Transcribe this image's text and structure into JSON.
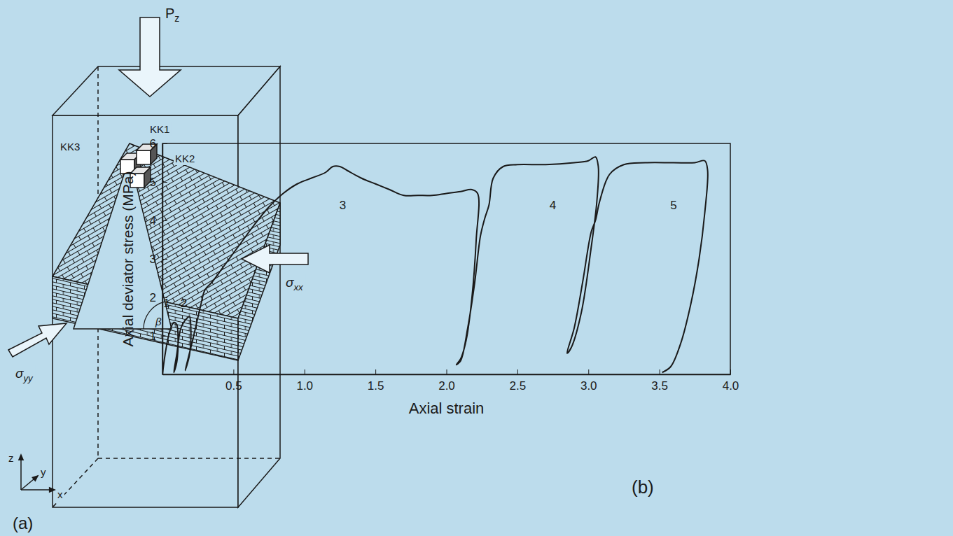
{
  "panels": [
    "(a)",
    "(b)"
  ],
  "diagram": {
    "labels": [
      {
        "text": "P",
        "sub": "z"
      },
      {
        "text": "KK3"
      },
      {
        "text": "KK1"
      },
      {
        "text": "KK2"
      },
      {
        "text": "β"
      },
      {
        "text": "σ",
        "sub": "xx"
      },
      {
        "text": "σ",
        "sub": "yy"
      },
      {
        "text": "z"
      },
      {
        "text": "y"
      },
      {
        "text": "x"
      }
    ]
  },
  "chart_data": {
    "type": "line",
    "x_label": "Axial strain",
    "y_label": "Axial deviator stress (MPa)",
    "xlim": [
      0,
      4
    ],
    "ylim": [
      0,
      6
    ],
    "xticks": [
      0.5,
      {
        "value": 1,
        "label": "1.0"
      },
      1.5,
      {
        "value": 2,
        "label": "2.0"
      },
      2.5,
      {
        "value": 3,
        "label": "3.0"
      },
      3.5,
      {
        "value": 4,
        "label": "4.0"
      }
    ],
    "yticks": [
      1,
      2,
      3,
      4,
      5,
      6
    ],
    "x": [
      0,
      0.02,
      0.05,
      0.08,
      0.1,
      0.11,
      0.1,
      0.08,
      0.1,
      0.13,
      0.17,
      0.19,
      0.2,
      0.19,
      0.16,
      0.18,
      0.22,
      0.27,
      0.3,
      0.35,
      0.45,
      0.55,
      0.65,
      0.75,
      0.85,
      0.95,
      1.05,
      1.15,
      1.2,
      1.25,
      1.3,
      1.4,
      1.5,
      1.6,
      1.7,
      1.8,
      1.9,
      2.0,
      2.1,
      2.18,
      2.22,
      2.21,
      2.18,
      2.14,
      2.1,
      2.07,
      2.1,
      2.15,
      2.2,
      2.24,
      2.27,
      2.3,
      2.33,
      2.4,
      2.5,
      2.7,
      2.9,
      3.0,
      3.05,
      3.07,
      3.06,
      3.02,
      2.95,
      2.88,
      2.85,
      2.9,
      2.96,
      3.02,
      3.05,
      3.08,
      3.15,
      3.25,
      3.4,
      3.6,
      3.75,
      3.82,
      3.84,
      3.82,
      3.78,
      3.72,
      3.65,
      3.58,
      3.52
    ],
    "series": [
      {
        "color": "#1a1a1a",
        "values": [
          0,
          0.55,
          1.1,
          1.35,
          1.3,
          0.8,
          0.3,
          0.05,
          0.5,
          1.2,
          1.45,
          1.5,
          1.2,
          0.5,
          0.1,
          0.4,
          1.0,
          1.8,
          2.2,
          2.4,
          2.9,
          3.4,
          3.9,
          4.35,
          4.7,
          4.95,
          5.1,
          5.25,
          5.4,
          5.4,
          5.3,
          5.1,
          4.95,
          4.8,
          4.65,
          4.65,
          4.65,
          4.7,
          4.75,
          4.8,
          4.7,
          3.5,
          2.0,
          0.9,
          0.4,
          0.25,
          0.35,
          1.2,
          2.4,
          3.6,
          4.05,
          4.4,
          5.1,
          5.4,
          5.45,
          5.45,
          5.5,
          5.55,
          5.65,
          5.4,
          4.5,
          3.3,
          1.6,
          0.7,
          0.55,
          1.2,
          2.4,
          3.7,
          4.0,
          4.5,
          5.2,
          5.45,
          5.5,
          5.5,
          5.5,
          5.55,
          5.3,
          4.2,
          3.0,
          1.8,
          0.8,
          0.2,
          0.05
        ]
      }
    ],
    "annotations": [
      {
        "text": "1",
        "x": 0.03,
        "y": 1.75
      },
      {
        "text": "2",
        "x": 0.15,
        "y": 1.75
      },
      {
        "text": "3",
        "x": 1.27,
        "y": 4.3
      },
      {
        "text": "4",
        "x": 2.75,
        "y": 4.3
      },
      {
        "text": "5",
        "x": 3.6,
        "y": 4.3
      }
    ]
  }
}
